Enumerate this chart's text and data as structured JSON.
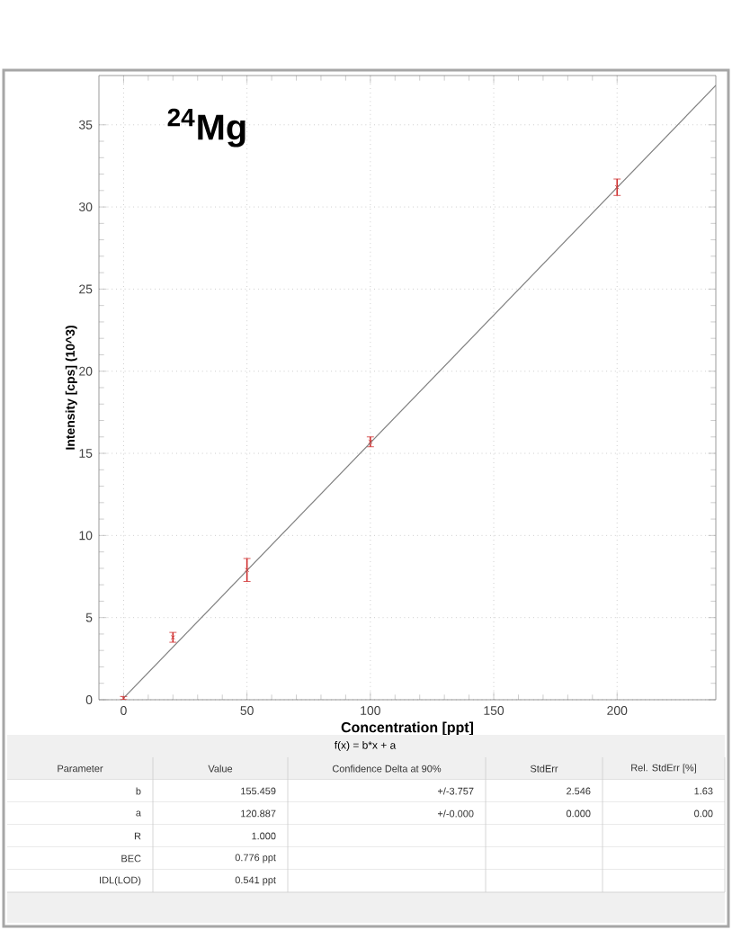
{
  "chart_data": {
    "type": "scatter",
    "title": "$^{24}$Mg",
    "xlabel": "Concentration [ppt]",
    "ylabel": "Intensity [cps] (10^3)",
    "xlim": [
      -10,
      240
    ],
    "ylim": [
      0,
      38
    ],
    "xticks": [
      0,
      50,
      100,
      150,
      200
    ],
    "yticks": [
      0,
      5,
      10,
      15,
      20,
      25,
      30,
      35
    ],
    "grid": true,
    "marker": "cross",
    "series": [
      {
        "color": "#d03030",
        "x": [
          0,
          20,
          50,
          100,
          200
        ],
        "values": [
          0.1,
          3.8,
          7.9,
          15.7,
          31.2
        ],
        "errors": [
          0.1,
          0.3,
          0.7,
          0.3,
          0.5
        ]
      },
      {
        "type": "line",
        "marker": "none",
        "color": "#808080",
        "x": [
          0,
          240
        ],
        "values": [
          0.1,
          37.4
        ]
      }
    ],
    "annotations": [
      "f(x) = b*x + a",
      "Parameter",
      "Value",
      "Confidence Delta at 90%",
      "StdErr",
      "Rel. StdErr [%]",
      "b",
      "155.459",
      "+/-3.757",
      "2.546",
      "1.63",
      "a",
      "120.887",
      "+/-0.000",
      "0.000",
      "0.00",
      "R",
      "1.000",
      "BEC",
      "0.776 ppt",
      "IDL(LOD)",
      "0.541 ppt"
    ]
  }
}
